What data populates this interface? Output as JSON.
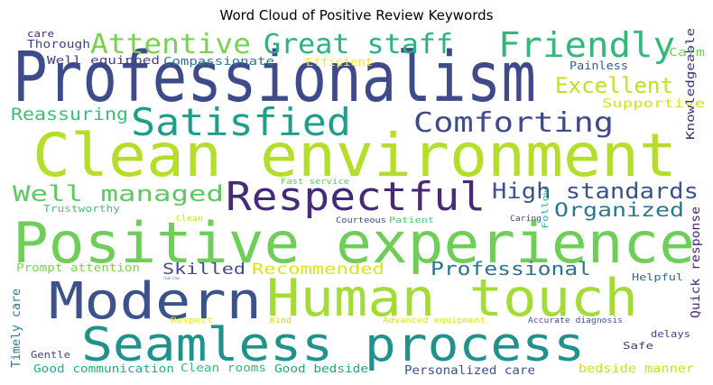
{
  "chart_data": {
    "type": "wordcloud",
    "title": "Word Cloud of Positive Review Keywords",
    "words": [
      {
        "text": "Professionalism",
        "color": "#3e4a89"
      },
      {
        "text": "Clean environment",
        "color": "#b5de2b"
      },
      {
        "text": "Positive experience",
        "color": "#6ece58"
      },
      {
        "text": "Human touch",
        "color": "#a5db36"
      },
      {
        "text": "Modern",
        "color": "#3b528b"
      },
      {
        "text": "Seamless process",
        "color": "#21918c"
      },
      {
        "text": "Respectful",
        "color": "#482878"
      },
      {
        "text": "Satisfied",
        "color": "#1f9e89"
      },
      {
        "text": "Friendly",
        "color": "#35b779"
      },
      {
        "text": "Great staff",
        "color": "#2db27d"
      },
      {
        "text": "Attentive",
        "color": "#7ad151"
      },
      {
        "text": "Comforting",
        "color": "#3e4a89"
      },
      {
        "text": "Excellent",
        "color": "#c2df23"
      },
      {
        "text": "Well managed",
        "color": "#5ec962"
      },
      {
        "text": "High standards",
        "color": "#3b528b"
      },
      {
        "text": "Organized",
        "color": "#2a788e"
      },
      {
        "text": "Reassuring",
        "color": "#3dbc74"
      },
      {
        "text": "Professional",
        "color": "#2c728e"
      },
      {
        "text": "Recommended",
        "color": "#dde318"
      },
      {
        "text": "Skilled",
        "color": "#3e4a89"
      },
      {
        "text": "Supportive",
        "color": "#d5e21a"
      },
      {
        "text": "Knowledgeable",
        "color": "#472c7a"
      },
      {
        "text": "Quick response",
        "color": "#482475"
      },
      {
        "text": "Timely care",
        "color": "#2a788e"
      },
      {
        "text": "Personalized care",
        "color": "#3b528b"
      },
      {
        "text": "bedside manner",
        "color": "#c8e020"
      },
      {
        "text": "Good bedside",
        "color": "#20a386"
      },
      {
        "text": "Good communication",
        "color": "#25ab82"
      },
      {
        "text": "Clean rooms",
        "color": "#38b977"
      },
      {
        "text": "Prompt attention",
        "color": "#7ad151"
      },
      {
        "text": "Thorough",
        "color": "#424086"
      },
      {
        "text": "Well equipped",
        "color": "#414487"
      },
      {
        "text": "Compassionate",
        "color": "#2a768e"
      },
      {
        "text": "Efficient",
        "color": "#fde725"
      },
      {
        "text": "Painless",
        "color": "#34618d"
      },
      {
        "text": "Calm",
        "color": "#73d056"
      },
      {
        "text": "care",
        "color": "#482576"
      },
      {
        "text": "Trustworthy",
        "color": "#48c16e"
      },
      {
        "text": "Helpful",
        "color": "#33638d"
      },
      {
        "text": "Caring",
        "color": "#3e4a89"
      },
      {
        "text": "Follow",
        "color": "#29af7f"
      },
      {
        "text": "Patient",
        "color": "#48c16e"
      },
      {
        "text": "Courteous",
        "color": "#3e4a89"
      },
      {
        "text": "Fast service",
        "color": "#5ec962"
      },
      {
        "text": "Clean",
        "color": "#cae11f"
      },
      {
        "text": "Clean Clean",
        "color": "#2a788e"
      },
      {
        "text": "Respect",
        "color": "#f1e51d"
      },
      {
        "text": "Kind",
        "color": "#c0df25"
      },
      {
        "text": "Advanced equipment",
        "color": "#dde318"
      },
      {
        "text": "Accurate diagnosis",
        "color": "#3b528b"
      },
      {
        "text": "delays",
        "color": "#3e4a89"
      },
      {
        "text": "Safe",
        "color": "#453781"
      },
      {
        "text": "Gentle",
        "color": "#3e4a89"
      }
    ]
  }
}
